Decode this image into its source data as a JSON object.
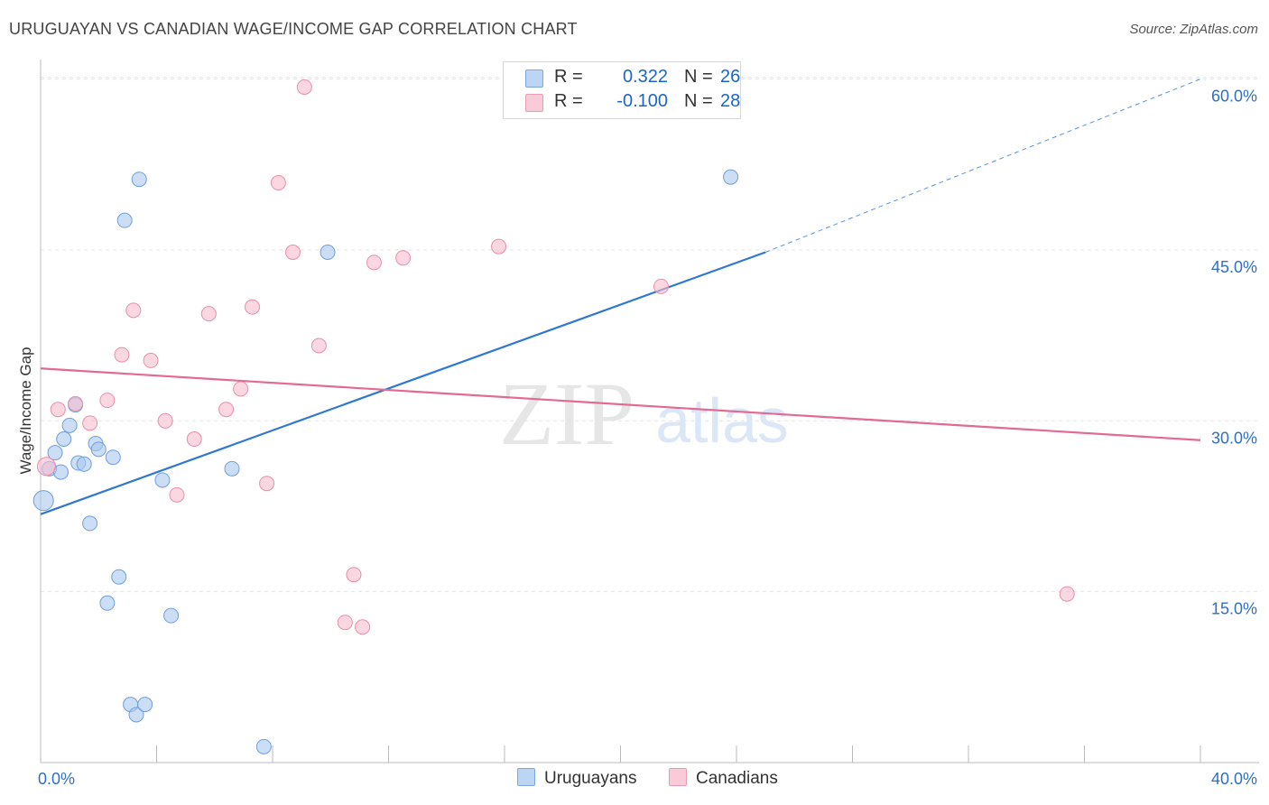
{
  "title": "URUGUAYAN VS CANADIAN WAGE/INCOME GAP CORRELATION CHART",
  "source": "Source: ZipAtlas.com",
  "watermark": {
    "zip": "ZIP",
    "atlas": "atlas"
  },
  "legend": {
    "r_label": "R =",
    "n_label": "N =",
    "rows": [
      {
        "series": "Uruguayans",
        "r": "0.322",
        "n": "26"
      },
      {
        "series": "Canadians",
        "r": "-0.100",
        "n": "28"
      }
    ]
  },
  "chart_data": {
    "type": "scatter",
    "title": "URUGUAYAN VS CANADIAN WAGE/INCOME GAP CORRELATION CHART",
    "xlabel": "",
    "ylabel": "Wage/Income Gap",
    "xlim": [
      0,
      40
    ],
    "ylim": [
      0,
      61
    ],
    "x_tick_labels": [
      "0.0%",
      "40.0%"
    ],
    "y_ticks": [
      15,
      30,
      45,
      60
    ],
    "y_tick_labels": [
      "15.0%",
      "30.0%",
      "45.0%",
      "60.0%"
    ],
    "grid": true,
    "legend_position": "top-center",
    "series": [
      {
        "name": "Uruguayans",
        "color": "#a9c8f0",
        "stroke": "#6f9fdc",
        "line_color": "#2f78d2",
        "points": [
          [
            0.1,
            23.0
          ],
          [
            0.3,
            25.8
          ],
          [
            0.5,
            27.2
          ],
          [
            0.7,
            25.5
          ],
          [
            0.8,
            28.4
          ],
          [
            1.0,
            29.6
          ],
          [
            1.2,
            31.4
          ],
          [
            1.3,
            26.3
          ],
          [
            1.5,
            26.2
          ],
          [
            1.7,
            21.0
          ],
          [
            1.9,
            28.0
          ],
          [
            2.0,
            27.5
          ],
          [
            2.3,
            14.0
          ],
          [
            2.5,
            26.8
          ],
          [
            2.7,
            16.3
          ],
          [
            2.9,
            47.6
          ],
          [
            3.1,
            5.1
          ],
          [
            3.3,
            4.2
          ],
          [
            3.4,
            51.2
          ],
          [
            3.6,
            5.1
          ],
          [
            4.2,
            24.8
          ],
          [
            4.5,
            12.9
          ],
          [
            6.6,
            25.8
          ],
          [
            7.7,
            1.4
          ],
          [
            9.9,
            44.8
          ],
          [
            23.8,
            51.4
          ]
        ],
        "trend": {
          "x": [
            0,
            25
          ],
          "y": [
            21.8,
            44.8
          ],
          "dashed_to": [
            40,
            60.0
          ]
        }
      },
      {
        "name": "Canadians",
        "color": "#f6bccd",
        "stroke": "#e98fab",
        "line_color": "#e26a93",
        "points": [
          [
            0.2,
            26.0
          ],
          [
            0.6,
            31.0
          ],
          [
            1.2,
            31.5
          ],
          [
            1.7,
            29.8
          ],
          [
            2.3,
            31.8
          ],
          [
            2.8,
            35.8
          ],
          [
            3.2,
            39.7
          ],
          [
            3.8,
            35.3
          ],
          [
            4.3,
            30.0
          ],
          [
            4.7,
            23.5
          ],
          [
            5.3,
            28.4
          ],
          [
            5.8,
            39.4
          ],
          [
            6.4,
            31.0
          ],
          [
            6.9,
            32.8
          ],
          [
            7.3,
            40.0
          ],
          [
            7.8,
            24.5
          ],
          [
            8.2,
            50.9
          ],
          [
            8.7,
            44.8
          ],
          [
            9.1,
            59.3
          ],
          [
            9.6,
            36.6
          ],
          [
            10.5,
            12.3
          ],
          [
            10.8,
            16.5
          ],
          [
            11.1,
            11.9
          ],
          [
            11.5,
            43.9
          ],
          [
            12.5,
            44.3
          ],
          [
            15.8,
            45.3
          ],
          [
            21.4,
            41.8
          ],
          [
            35.4,
            14.8
          ]
        ],
        "trend": {
          "x": [
            0,
            40
          ],
          "y": [
            34.6,
            28.3
          ]
        }
      }
    ]
  }
}
